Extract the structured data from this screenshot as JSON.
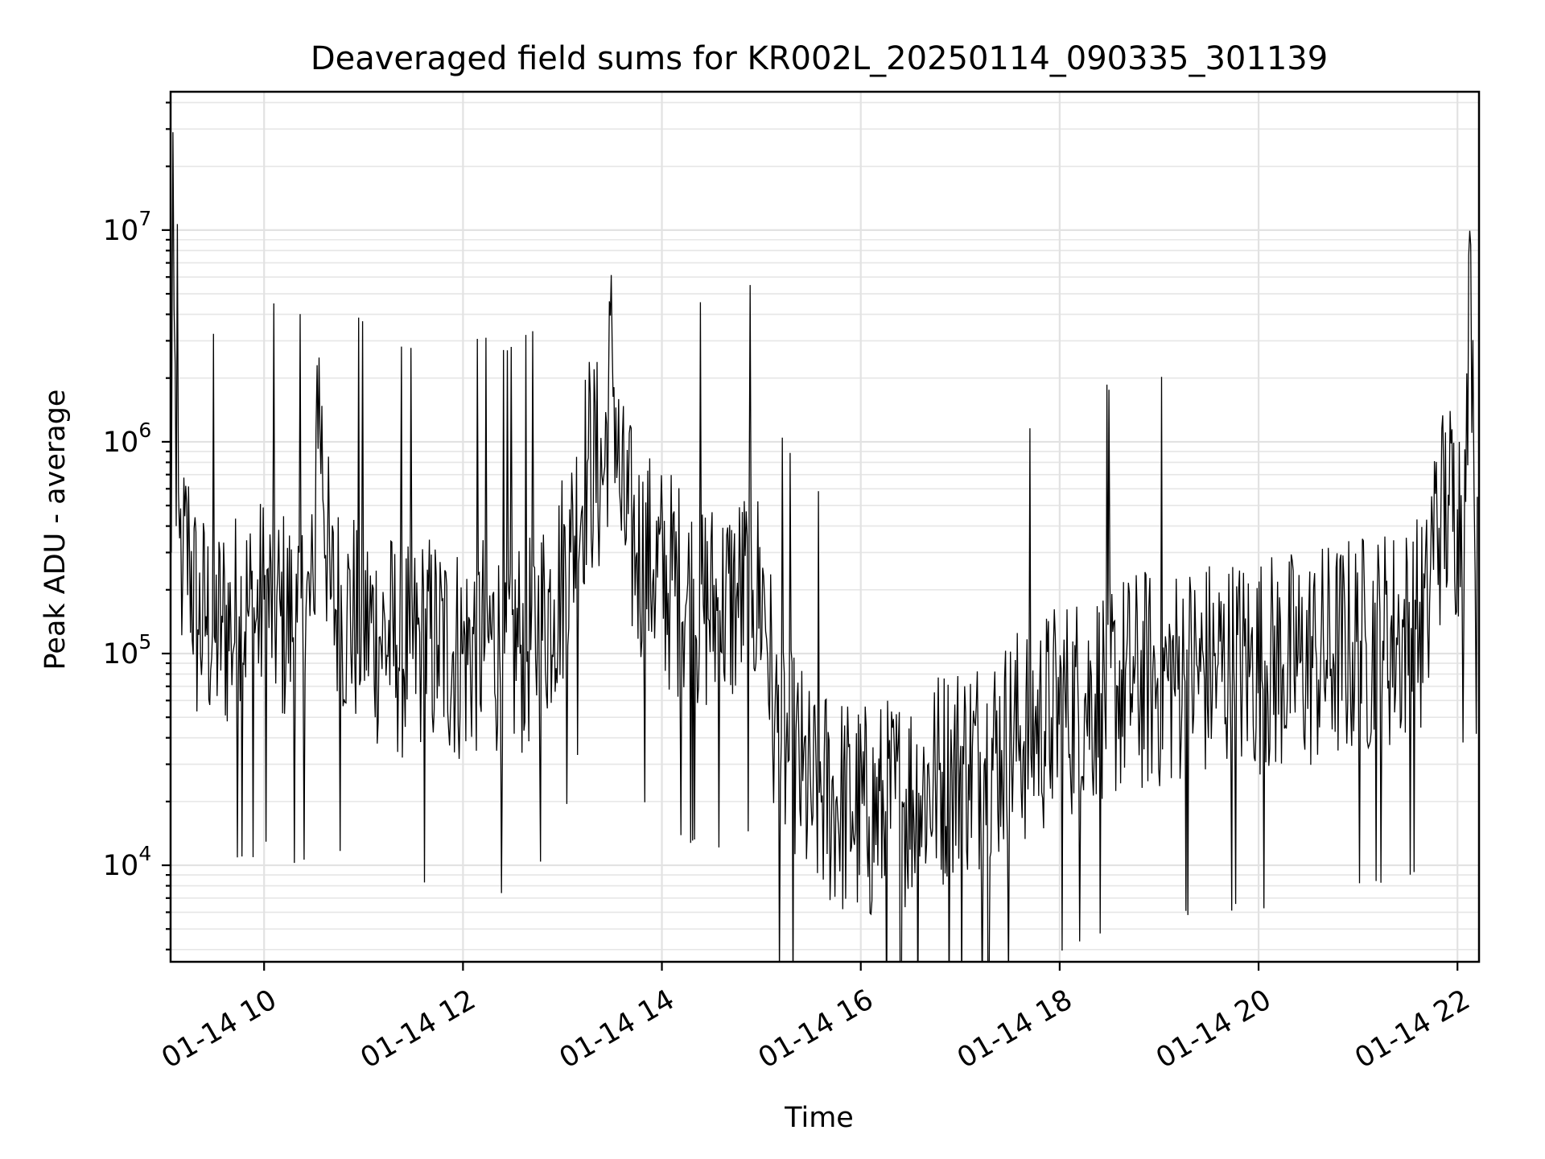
{
  "chart_data": {
    "type": "line",
    "title": "Deaveraged field sums for KR002L_20250114_090335_301139",
    "xlabel": "Time",
    "ylabel": "Peak ADU - average",
    "xscale": "time",
    "yscale": "log",
    "xlim": [
      "2025-01-14T09:03:35",
      "2025-01-14T22:13:00"
    ],
    "ylim": [
      3500,
      45000000
    ],
    "grid": true,
    "legend": "none",
    "line_color": "#000000",
    "x_ticks": [
      {
        "value": "2025-01-14T10:00:00",
        "label": "01-14 10"
      },
      {
        "value": "2025-01-14T12:00:00",
        "label": "01-14 12"
      },
      {
        "value": "2025-01-14T14:00:00",
        "label": "01-14 14"
      },
      {
        "value": "2025-01-14T16:00:00",
        "label": "01-14 16"
      },
      {
        "value": "2025-01-14T18:00:00",
        "label": "01-14 18"
      },
      {
        "value": "2025-01-14T20:00:00",
        "label": "01-14 20"
      },
      {
        "value": "2025-01-14T22:00:00",
        "label": "01-14 22"
      }
    ],
    "y_ticks": [
      {
        "value": 10000,
        "base": "10",
        "exp": "4"
      },
      {
        "value": 100000,
        "base": "10",
        "exp": "5"
      },
      {
        "value": 1000000,
        "base": "10",
        "exp": "6"
      },
      {
        "value": 10000000,
        "base": "10",
        "exp": "7"
      }
    ],
    "series": [
      {
        "x": [
          "2025-01-14T09:04:00",
          "2025-01-14T09:05:00",
          "2025-01-14T09:07:00",
          "2025-01-14T09:09:00",
          "2025-01-14T09:11:00",
          "2025-01-14T09:15:00",
          "2025-01-14T09:20:00",
          "2025-01-14T09:25:00",
          "2025-01-14T09:30:00",
          "2025-01-14T09:35:00",
          "2025-01-14T09:40:00",
          "2025-01-14T09:45:00",
          "2025-01-14T09:50:00",
          "2025-01-14T09:55:00",
          "2025-01-14T10:00:00",
          "2025-01-14T10:10:00",
          "2025-01-14T10:20:00",
          "2025-01-14T10:30:00",
          "2025-01-14T10:32:00",
          "2025-01-14T10:40:00",
          "2025-01-14T10:50:00",
          "2025-01-14T11:00:00",
          "2025-01-14T11:10:00",
          "2025-01-14T11:20:00",
          "2025-01-14T11:28:00",
          "2025-01-14T11:35:00",
          "2025-01-14T11:45:00",
          "2025-01-14T12:00:00",
          "2025-01-14T12:15:00",
          "2025-01-14T12:25:00",
          "2025-01-14T12:35:00",
          "2025-01-14T12:45:00",
          "2025-01-14T12:55:00",
          "2025-01-14T13:05:00",
          "2025-01-14T13:15:00",
          "2025-01-14T13:25:00",
          "2025-01-14T13:30:00",
          "2025-01-14T13:35:00",
          "2025-01-14T13:45:00",
          "2025-01-14T13:55:00",
          "2025-01-14T14:05:00",
          "2025-01-14T14:15:00",
          "2025-01-14T14:25:00",
          "2025-01-14T14:35:00",
          "2025-01-14T14:45:00",
          "2025-01-14T14:55:00",
          "2025-01-14T15:02:00",
          "2025-01-14T15:08:00",
          "2025-01-14T15:15:00",
          "2025-01-14T15:25:00",
          "2025-01-14T15:30:00",
          "2025-01-14T15:35:00",
          "2025-01-14T15:45:00",
          "2025-01-14T15:55:00",
          "2025-01-14T16:05:00",
          "2025-01-14T16:15:00",
          "2025-01-14T16:25:00",
          "2025-01-14T16:35:00",
          "2025-01-14T16:45:00",
          "2025-01-14T16:55:00",
          "2025-01-14T17:05:00",
          "2025-01-14T17:15:00",
          "2025-01-14T17:25:00",
          "2025-01-14T17:35:00",
          "2025-01-14T17:45:00",
          "2025-01-14T17:55:00",
          "2025-01-14T18:05:00",
          "2025-01-14T18:15:00",
          "2025-01-14T18:25:00",
          "2025-01-14T18:35:00",
          "2025-01-14T18:45:00",
          "2025-01-14T18:55:00",
          "2025-01-14T19:05:00",
          "2025-01-14T19:15:00",
          "2025-01-14T19:25:00",
          "2025-01-14T19:35:00",
          "2025-01-14T19:45:00",
          "2025-01-14T19:55:00",
          "2025-01-14T20:05:00",
          "2025-01-14T20:15:00",
          "2025-01-14T20:25:00",
          "2025-01-14T20:35:00",
          "2025-01-14T20:45:00",
          "2025-01-14T20:55:00",
          "2025-01-14T21:05:00",
          "2025-01-14T21:15:00",
          "2025-01-14T21:25:00",
          "2025-01-14T21:35:00",
          "2025-01-14T21:42:00",
          "2025-01-14T21:45:00",
          "2025-01-14T21:50:00",
          "2025-01-14T21:55:00",
          "2025-01-14T22:00:00",
          "2025-01-14T22:05:00",
          "2025-01-14T22:08:00",
          "2025-01-14T22:10:00",
          "2025-01-14T22:12:00"
        ],
        "y": [
          300000,
          29000000,
          400000,
          350000,
          250000,
          300000,
          130000,
          150000,
          120000,
          140000,
          130000,
          150000,
          160000,
          140000,
          180000,
          150000,
          140000,
          160000,
          2300000,
          180000,
          150000,
          140000,
          120000,
          110000,
          100000,
          110000,
          110000,
          100000,
          120000,
          100000,
          110000,
          130000,
          180000,
          300000,
          800000,
          700000,
          2800000,
          500000,
          300000,
          250000,
          220000,
          180000,
          170000,
          160000,
          180000,
          200000,
          180000,
          45000,
          35000,
          25000,
          20000,
          22000,
          20000,
          18000,
          17000,
          18000,
          20000,
          22000,
          25000,
          28000,
          30000,
          32000,
          35000,
          40000,
          45000,
          50000,
          55000,
          60000,
          65000,
          70000,
          72000,
          75000,
          78000,
          80000,
          82000,
          85000,
          86000,
          87000,
          88000,
          89000,
          90000,
          95000,
          100000,
          105000,
          110000,
          115000,
          120000,
          130000,
          140000,
          400000,
          450000,
          500000,
          480000,
          520000,
          8500000,
          600000,
          550000
        ]
      }
    ]
  }
}
